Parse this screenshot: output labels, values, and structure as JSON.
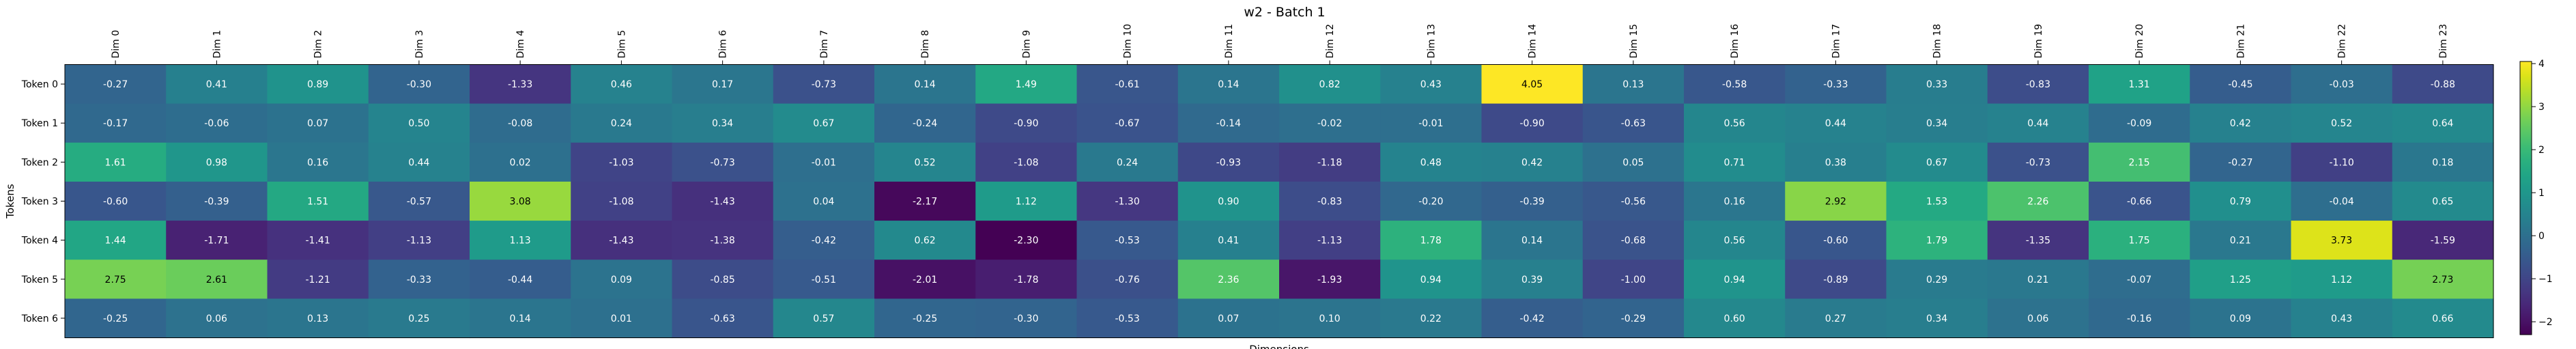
{
  "chart_data": {
    "type": "heatmap",
    "title": "w2 - Batch 1",
    "xlabel": "Dimensions",
    "ylabel": "Tokens",
    "columns": [
      "Dim 0",
      "Dim 1",
      "Dim 2",
      "Dim 3",
      "Dim 4",
      "Dim 5",
      "Dim 6",
      "Dim 7",
      "Dim 8",
      "Dim 9",
      "Dim 10",
      "Dim 11",
      "Dim 12",
      "Dim 13",
      "Dim 14",
      "Dim 15",
      "Dim 16",
      "Dim 17",
      "Dim 18",
      "Dim 19",
      "Dim 20",
      "Dim 21",
      "Dim 22",
      "Dim 23"
    ],
    "rows": [
      "Token 0",
      "Token 1",
      "Token 2",
      "Token 3",
      "Token 4",
      "Token 5",
      "Token 6"
    ],
    "values": [
      [
        -0.27,
        0.41,
        0.89,
        -0.3,
        -1.33,
        0.46,
        0.17,
        -0.73,
        0.14,
        1.49,
        -0.61,
        0.14,
        0.82,
        0.43,
        4.05,
        0.13,
        -0.58,
        -0.33,
        0.33,
        -0.83,
        1.31,
        -0.45,
        -0.03,
        -0.88
      ],
      [
        -0.17,
        -0.06,
        0.07,
        0.5,
        -0.08,
        0.24,
        0.34,
        0.67,
        -0.24,
        -0.9,
        -0.67,
        -0.14,
        -0.02,
        -0.01,
        -0.9,
        -0.63,
        0.56,
        0.44,
        0.34,
        0.44,
        -0.09,
        0.42,
        0.52,
        0.64
      ],
      [
        1.61,
        0.98,
        0.16,
        0.44,
        0.02,
        -1.03,
        -0.73,
        -0.01,
        0.52,
        -1.08,
        0.24,
        -0.93,
        -1.18,
        0.48,
        0.42,
        0.05,
        0.71,
        0.38,
        0.67,
        -0.73,
        2.15,
        -0.27,
        -1.1,
        0.18
      ],
      [
        -0.6,
        -0.39,
        1.51,
        -0.57,
        3.08,
        -1.08,
        -1.43,
        0.04,
        -2.17,
        1.12,
        -1.3,
        0.9,
        -0.83,
        -0.2,
        -0.39,
        -0.56,
        0.16,
        2.92,
        1.53,
        2.26,
        -0.66,
        0.79,
        -0.04,
        0.65
      ],
      [
        1.44,
        -1.71,
        -1.41,
        -1.13,
        1.13,
        -1.43,
        -1.38,
        -0.42,
        0.62,
        -2.3,
        -0.53,
        0.41,
        -1.13,
        1.78,
        0.14,
        -0.68,
        0.56,
        -0.6,
        1.79,
        -1.35,
        1.75,
        0.21,
        3.73,
        -1.59
      ],
      [
        2.75,
        2.61,
        -1.21,
        -0.33,
        -0.44,
        0.09,
        -0.85,
        -0.51,
        -2.01,
        -1.78,
        -0.76,
        2.36,
        -1.93,
        0.94,
        0.39,
        -1.0,
        0.94,
        -0.89,
        0.29,
        0.21,
        -0.07,
        1.25,
        1.12,
        2.73
      ],
      [
        -0.25,
        0.06,
        0.13,
        0.25,
        0.14,
        0.01,
        -0.63,
        0.57,
        -0.25,
        -0.3,
        -0.53,
        0.07,
        0.1,
        0.22,
        -0.42,
        -0.29,
        0.6,
        0.27,
        0.34,
        0.06,
        -0.16,
        0.09,
        0.43,
        0.66
      ]
    ],
    "colormap": "viridis",
    "vmin": -2.3,
    "vmax": 4.05,
    "colorbar_ticks": [
      "4",
      "3",
      "2",
      "1",
      "0",
      "−1",
      "−2"
    ],
    "colorbar_tick_values": [
      4,
      3,
      2,
      1,
      0,
      -1,
      -2
    ],
    "grid": false,
    "legend": "colorbar-right"
  }
}
